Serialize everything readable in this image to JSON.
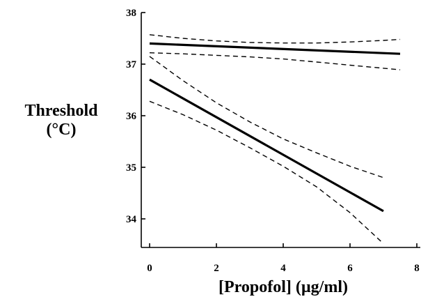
{
  "chart_data": {
    "type": "line",
    "title": "",
    "xlabel": "[Propofol] (µg/ml)",
    "ylabel_lines": [
      "Threshold",
      "(°C)"
    ],
    "xlim": [
      0,
      8
    ],
    "ylim": [
      33.5,
      38
    ],
    "x_ticks": [
      0,
      2,
      4,
      6,
      8
    ],
    "y_ticks": [
      34,
      35,
      36,
      37,
      38
    ],
    "grid": false,
    "legend": "none",
    "series": [
      {
        "style": "solid",
        "color": "#000000",
        "x": [
          0,
          7.5
        ],
        "y": [
          37.4,
          37.2
        ]
      },
      {
        "style": "dashed",
        "color": "#000000",
        "x": [
          0,
          1,
          2,
          3,
          4,
          5,
          6,
          7,
          7.5
        ],
        "y": [
          37.57,
          37.5,
          37.45,
          37.42,
          37.41,
          37.41,
          37.43,
          37.46,
          37.48
        ]
      },
      {
        "style": "dashed",
        "color": "#000000",
        "x": [
          0,
          1,
          2,
          3,
          4,
          5,
          6,
          7,
          7.5
        ],
        "y": [
          37.22,
          37.2,
          37.17,
          37.14,
          37.1,
          37.04,
          36.98,
          36.92,
          36.89
        ]
      },
      {
        "style": "solid",
        "color": "#000000",
        "x": [
          0,
          7
        ],
        "y": [
          36.7,
          34.15
        ]
      },
      {
        "style": "dashed",
        "color": "#000000",
        "x": [
          0,
          1,
          2,
          3,
          4,
          5,
          6,
          7
        ],
        "y": [
          37.15,
          36.68,
          36.25,
          35.88,
          35.55,
          35.28,
          35.02,
          34.8
        ]
      },
      {
        "style": "dashed",
        "color": "#000000",
        "x": [
          0,
          1,
          2,
          3,
          4,
          5,
          6,
          7
        ],
        "y": [
          36.28,
          36.02,
          35.72,
          35.38,
          35.02,
          34.62,
          34.12,
          33.52
        ]
      }
    ]
  }
}
